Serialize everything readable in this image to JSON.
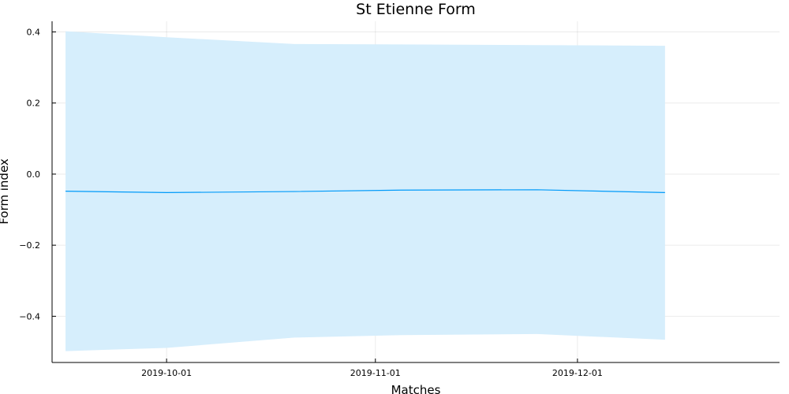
{
  "chart_data": {
    "type": "line",
    "title": "St Etienne Form",
    "xlabel": "Matches",
    "ylabel": "Form index",
    "x_axis_type": "date",
    "xlim": [
      "2019-09-14",
      "2019-12-31"
    ],
    "ylim": [
      -0.53,
      0.43
    ],
    "x_ticks": [
      "2019-10-01",
      "2019-11-01",
      "2019-12-01"
    ],
    "y_ticks": [
      -0.4,
      -0.2,
      0.0,
      0.2,
      0.4
    ],
    "y_tick_labels": [
      "−0.4",
      "−0.2",
      "0.0",
      "0.2",
      "0.4"
    ],
    "grid": true,
    "legend": "none",
    "series": [
      {
        "x": [
          "2019-09-16",
          "2019-10-01",
          "2019-10-20",
          "2019-11-05",
          "2019-11-25",
          "2019-12-14"
        ],
        "values": [
          -0.048,
          -0.052,
          -0.049,
          -0.045,
          -0.044,
          -0.052
        ],
        "lower": [
          -0.498,
          -0.489,
          -0.46,
          -0.453,
          -0.45,
          -0.466
        ],
        "upper": [
          0.402,
          0.385,
          0.366,
          0.365,
          0.363,
          0.361
        ],
        "color": "#009af9",
        "band_color": "#d6eefc"
      }
    ]
  }
}
